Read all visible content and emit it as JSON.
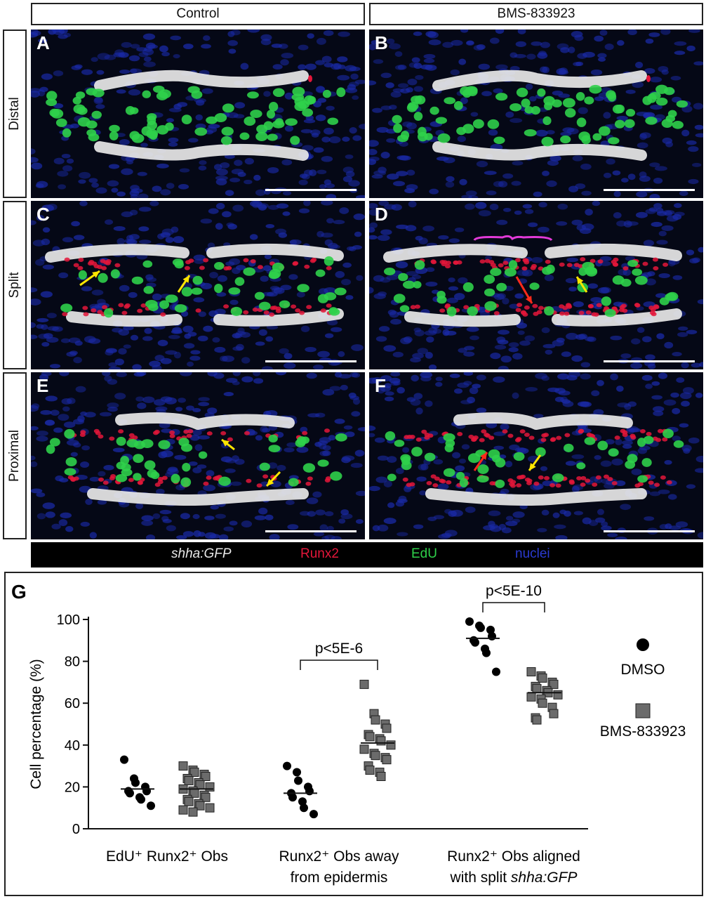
{
  "columns": [
    "Control",
    "BMS-833923"
  ],
  "rows": [
    "Distal",
    "Split",
    "Proximal"
  ],
  "panels": [
    "A",
    "B",
    "C",
    "D",
    "E",
    "F"
  ],
  "legend": {
    "shha": "shha:GFP",
    "runx2": "Runx2",
    "edu": "EdU",
    "nuclei": "nuclei"
  },
  "colors": {
    "shha": "#e8e8e8",
    "runx2": "#e3163a",
    "edu": "#2fd04a",
    "nuclei": "#1a2aa8",
    "yellow_arrow": "#ffe600",
    "red_arrow": "#ff2a1a",
    "bracket": "#e23ad8"
  },
  "graph": {
    "label": "G"
  },
  "chart_data": {
    "type": "scatter",
    "ylabel": "Cell percentage (%)",
    "ylim": [
      0,
      100
    ],
    "yticks": [
      0,
      20,
      40,
      60,
      80,
      100
    ],
    "categories": [
      {
        "line1": "EdU⁺ Runx2⁺ Obs",
        "line2": ""
      },
      {
        "line1": "Runx2⁺ Obs away",
        "line2": "from epidermis"
      },
      {
        "line1": "Runx2⁺ Obs aligned",
        "line2": "with split ",
        "line2_italic": "shha:GFP"
      }
    ],
    "series": [
      {
        "name": "DMSO",
        "marker": "circle",
        "groups": [
          {
            "values": [
              33,
              24,
              22,
              20,
              18,
              18,
              17,
              15,
              14,
              11
            ],
            "mean": 19
          },
          {
            "values": [
              30,
              27,
              23,
              20,
              18,
              17,
              15,
              13,
              10,
              7
            ],
            "mean": 17
          },
          {
            "values": [
              99,
              97,
              96,
              95,
              92,
              90,
              89,
              86,
              84,
              75
            ],
            "mean": 91
          }
        ]
      },
      {
        "name": "BMS-833923",
        "marker": "square",
        "groups": [
          {
            "values": [
              30,
              28,
              27,
              26,
              25,
              24,
              23,
              22,
              21,
              20,
              19,
              18,
              17,
              16,
              15,
              14,
              13,
              12,
              11,
              10,
              9,
              8
            ],
            "mean": 19
          },
          {
            "values": [
              69,
              55,
              52,
              50,
              48,
              45,
              44,
              43,
              42,
              40,
              38,
              36,
              35,
              34,
              33,
              30,
              28,
              27,
              25
            ],
            "mean": 41
          },
          {
            "values": [
              75,
              73,
              72,
              70,
              69,
              68,
              67,
              66,
              65,
              64,
              63,
              62,
              60,
              58,
              55,
              53,
              52
            ],
            "mean": 65
          }
        ]
      }
    ],
    "significance": [
      {
        "category_index": 1,
        "text": "p<5E-6"
      },
      {
        "category_index": 2,
        "text": "p<5E-10"
      }
    ]
  }
}
